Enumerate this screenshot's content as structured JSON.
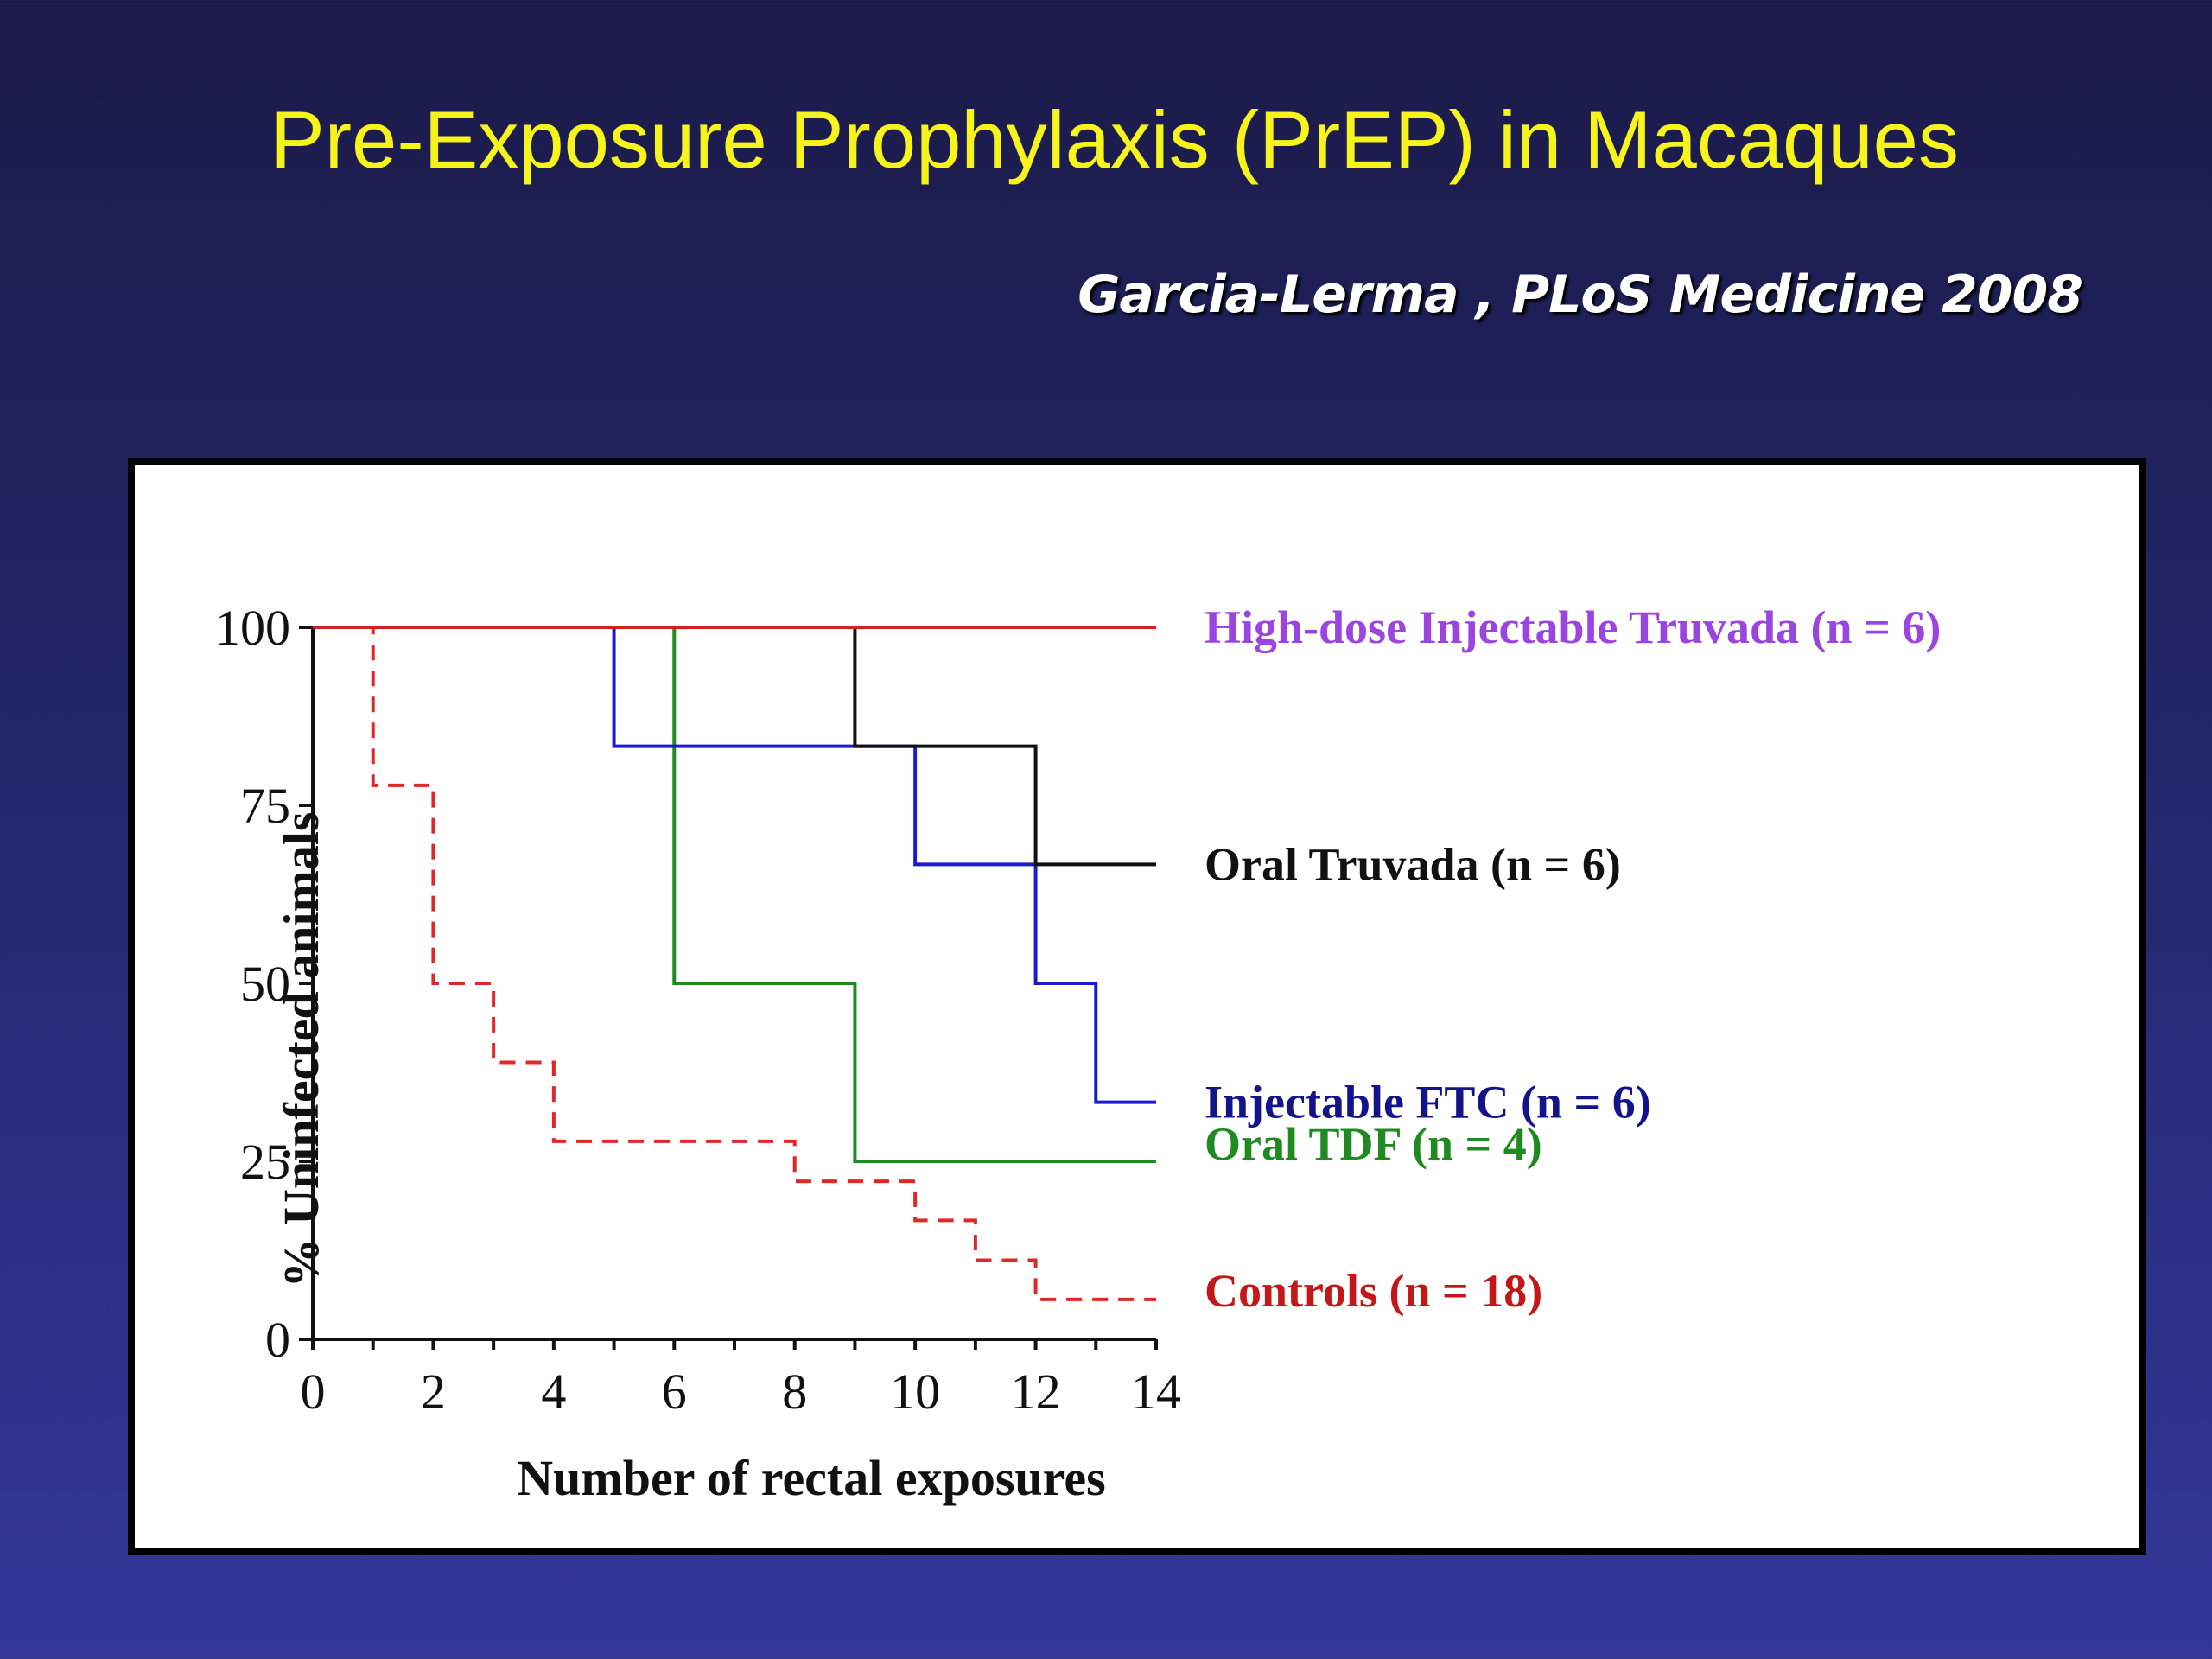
{
  "slide": {
    "title": "Pre-Exposure Prophylaxis (PrEP) in Macaques",
    "citation": "Garcia-Lerma , PLoS Medicine 2008"
  },
  "chart_data": {
    "type": "line",
    "step": true,
    "xlabel": "Number of rectal exposures",
    "ylabel": "% Uninfected animals",
    "xlim": [
      0,
      14
    ],
    "ylim": [
      0,
      100
    ],
    "xticks": [
      0,
      2,
      4,
      6,
      8,
      10,
      12,
      14
    ],
    "yticks": [
      0,
      25,
      50,
      75,
      100
    ],
    "grid": false,
    "legend": "right",
    "series": [
      {
        "name": "High-dose Injectable Truvada (n = 6)",
        "line_color": "#d42020",
        "label_color": "#9b45e0",
        "dashed": false,
        "x": [
          0,
          14
        ],
        "y": [
          100,
          100
        ]
      },
      {
        "name": "Oral Truvada (n = 6)",
        "line_color": "#111111",
        "label_color": "#111111",
        "dashed": false,
        "x": [
          0,
          9,
          12,
          14
        ],
        "y": [
          100,
          83.3,
          66.7,
          66.7
        ]
      },
      {
        "name": "Injectable FTC (n = 6)",
        "line_color": "#1a1ad0",
        "label_color": "#14148a",
        "dashed": false,
        "x": [
          0,
          5,
          10,
          12,
          13,
          14
        ],
        "y": [
          100,
          83.3,
          66.7,
          50,
          33.3,
          33.3
        ]
      },
      {
        "name": "Oral TDF (n = 4)",
        "line_color": "#1f8a1f",
        "label_color": "#1f8a1f",
        "dashed": false,
        "x": [
          0,
          6,
          9,
          14
        ],
        "y": [
          100,
          50,
          25,
          25
        ]
      },
      {
        "name": "Controls (n = 18)",
        "line_color": "#e02828",
        "label_color": "#c41818",
        "dashed": true,
        "x": [
          0,
          1,
          2,
          3,
          4,
          8,
          10,
          11,
          12,
          14
        ],
        "y": [
          100,
          77.8,
          50,
          38.9,
          27.8,
          22.2,
          16.7,
          11.1,
          5.6,
          5.6
        ]
      }
    ]
  }
}
